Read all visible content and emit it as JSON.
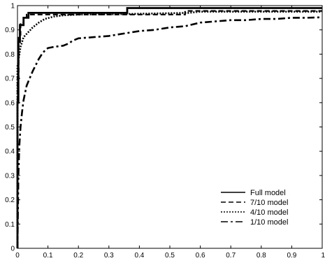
{
  "chart_data": {
    "type": "line",
    "title": "",
    "xlabel": "",
    "ylabel": "",
    "xlim": [
      0,
      1
    ],
    "ylim": [
      0,
      1
    ],
    "xticks": [
      0,
      0.1,
      0.2,
      0.3,
      0.4,
      0.5,
      0.6,
      0.7,
      0.8,
      0.9,
      1
    ],
    "xtick_labels": [
      "0",
      "0.1",
      "0.2",
      "0.3",
      "0.4",
      "0.5",
      "0.6",
      "0.7",
      "0.8",
      "0.9",
      "1"
    ],
    "yticks": [
      0,
      0.1,
      0.2,
      0.3,
      0.4,
      0.5,
      0.6,
      0.7,
      0.8,
      0.9,
      1
    ],
    "ytick_labels": [
      "0",
      "0.1",
      "0.2",
      "0.3",
      "0.4",
      "0.5",
      "0.6",
      "0.7",
      "0.8",
      "0.9",
      "1"
    ],
    "grid": false,
    "legend_position": "bottom-right",
    "series": [
      {
        "name": "Full model",
        "style": "solid",
        "x": [
          0,
          0,
          0.003,
          0.003,
          0.008,
          0.008,
          0.02,
          0.02,
          0.036,
          0.036,
          0.36,
          0.36,
          1
        ],
        "y": [
          0,
          0.6,
          0.6,
          0.85,
          0.85,
          0.92,
          0.92,
          0.95,
          0.95,
          0.97,
          0.97,
          0.99,
          0.99
        ]
      },
      {
        "name": "7/10 model",
        "style": "dashed",
        "x": [
          0,
          0,
          0.004,
          0.004,
          0.01,
          0.01,
          0.02,
          0.02,
          0.03,
          0.03,
          0.55,
          0.55,
          1
        ],
        "y": [
          0,
          0.7,
          0.7,
          0.88,
          0.88,
          0.93,
          0.93,
          0.95,
          0.95,
          0.963,
          0.963,
          0.978,
          0.978
        ]
      },
      {
        "name": "4/10 model",
        "style": "dotted",
        "x": [
          0,
          0,
          0.01,
          0.02,
          0.035,
          0.05,
          0.07,
          0.09,
          0.12,
          0.15,
          0.2,
          0.35,
          0.56,
          0.6,
          1
        ],
        "y": [
          0,
          0.75,
          0.83,
          0.87,
          0.89,
          0.91,
          0.93,
          0.945,
          0.955,
          0.96,
          0.963,
          0.965,
          0.97,
          0.975,
          0.975
        ]
      },
      {
        "name": "1/10 model",
        "style": "dashdot",
        "x": [
          0,
          0.003,
          0.006,
          0.01,
          0.015,
          0.02,
          0.03,
          0.04,
          0.05,
          0.06,
          0.07,
          0.08,
          0.09,
          0.1,
          0.12,
          0.15,
          0.17,
          0.18,
          0.2,
          0.25,
          0.3,
          0.35,
          0.4,
          0.45,
          0.5,
          0.55,
          0.6,
          0.65,
          0.7,
          0.75,
          0.8,
          0.85,
          0.9,
          0.95,
          1
        ],
        "y": [
          0,
          0.3,
          0.42,
          0.5,
          0.56,
          0.61,
          0.67,
          0.7,
          0.73,
          0.755,
          0.78,
          0.8,
          0.815,
          0.825,
          0.83,
          0.835,
          0.845,
          0.855,
          0.865,
          0.87,
          0.875,
          0.885,
          0.895,
          0.9,
          0.91,
          0.915,
          0.93,
          0.935,
          0.94,
          0.94,
          0.945,
          0.945,
          0.95,
          0.95,
          0.952
        ]
      }
    ]
  }
}
